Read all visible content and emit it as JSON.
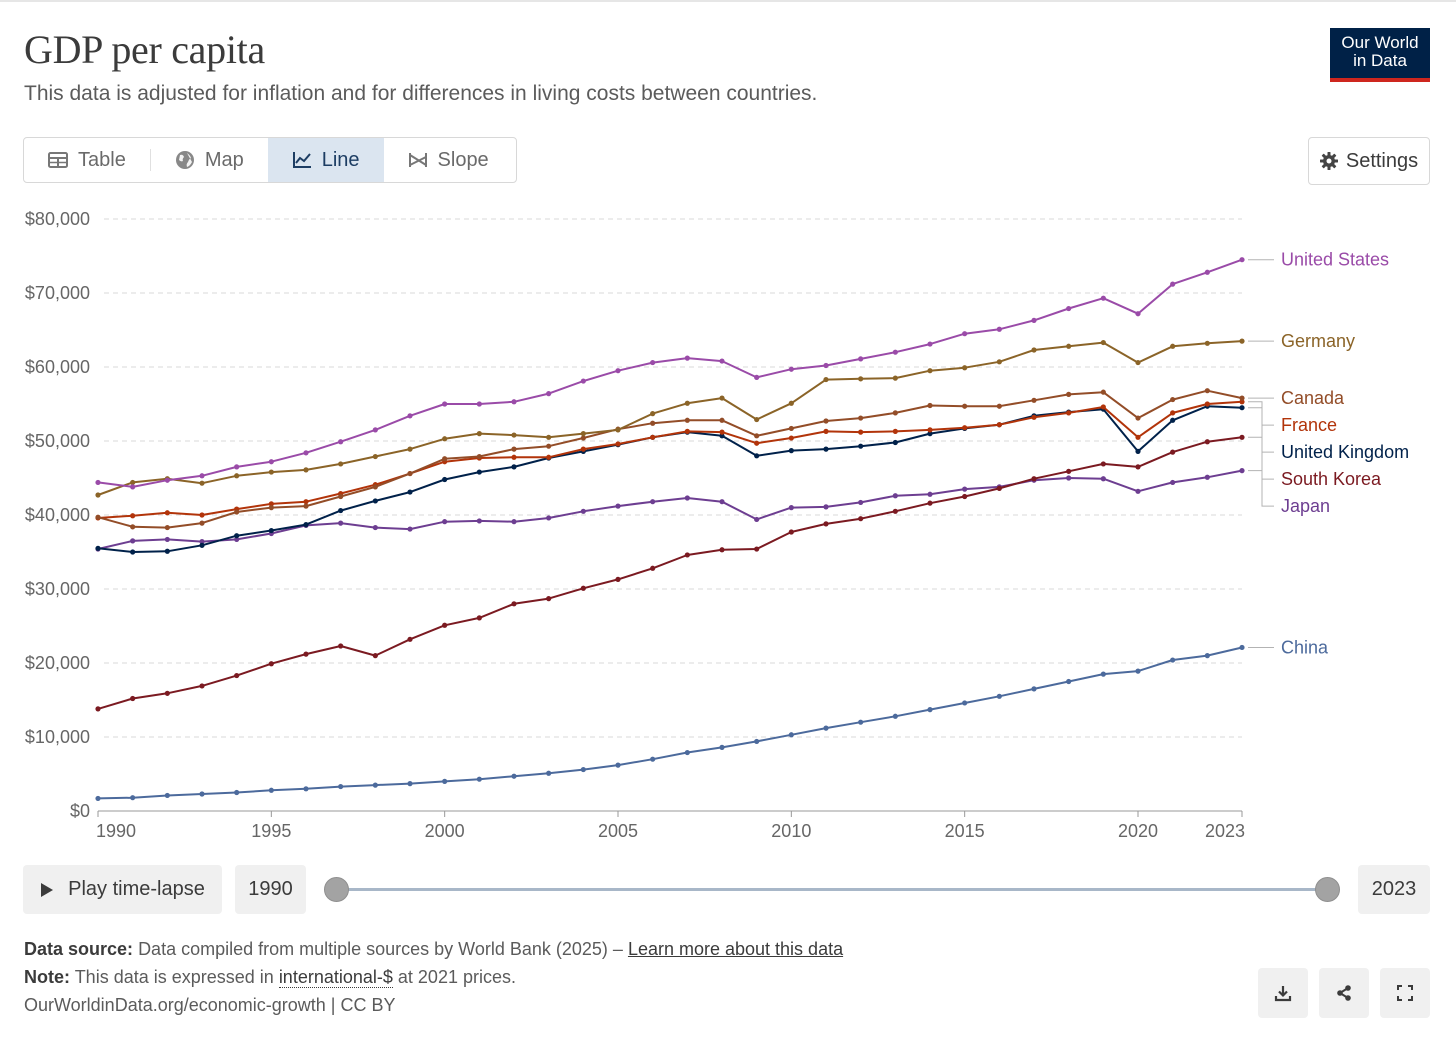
{
  "header": {
    "title": "GDP per capita",
    "subtitle": "This data is adjusted for inflation and for differences in living costs between countries.",
    "logo_line1": "Our World",
    "logo_line2": "in Data"
  },
  "tabs": [
    {
      "label": "Table",
      "icon": "table-icon"
    },
    {
      "label": "Map",
      "icon": "globe-icon"
    },
    {
      "label": "Line",
      "icon": "line-chart-icon",
      "active": true
    },
    {
      "label": "Slope",
      "icon": "slope-chart-icon"
    }
  ],
  "settings_label": "Settings",
  "timeline": {
    "play_label": "Play time-lapse",
    "start_year": "1990",
    "end_year": "2023"
  },
  "footer": {
    "source_label": "Data source:",
    "source_text": "Data compiled from multiple sources by World Bank (2025) –",
    "source_link": "Learn more about this data",
    "note_label": "Note:",
    "note_pre": "This data is expressed in",
    "note_term": "international-$",
    "note_post": "at 2021 prices.",
    "url_license": "OurWorldinData.org/economic-growth | CC BY"
  },
  "chart_data": {
    "type": "line",
    "title": "GDP per capita",
    "ylim": [
      0,
      80000
    ],
    "yticks": [
      0,
      10000,
      20000,
      30000,
      40000,
      50000,
      60000,
      70000,
      80000
    ],
    "ytick_labels": [
      "$0",
      "$10,000",
      "$20,000",
      "$30,000",
      "$40,000",
      "$50,000",
      "$60,000",
      "$70,000",
      "$80,000"
    ],
    "xlim": [
      1990,
      2023
    ],
    "xticks": [
      1990,
      1995,
      2000,
      2005,
      2010,
      2015,
      2020,
      2023
    ],
    "grid": true,
    "legend": "right end labels",
    "x": [
      1990,
      1991,
      1992,
      1993,
      1994,
      1995,
      1996,
      1997,
      1998,
      1999,
      2000,
      2001,
      2002,
      2003,
      2004,
      2005,
      2006,
      2007,
      2008,
      2009,
      2010,
      2011,
      2012,
      2013,
      2014,
      2015,
      2016,
      2017,
      2018,
      2019,
      2020,
      2021,
      2022,
      2023
    ],
    "series": [
      {
        "name": "United States",
        "color": "#9a4ba8",
        "values": [
          44400,
          43800,
          44700,
          45300,
          46500,
          47200,
          48400,
          49900,
          51500,
          53400,
          55000,
          55000,
          55300,
          56400,
          58100,
          59500,
          60600,
          61200,
          60800,
          58600,
          59700,
          60200,
          61100,
          62000,
          63100,
          64500,
          65100,
          66300,
          67900,
          69300,
          67200,
          71200,
          72800,
          74500
        ]
      },
      {
        "name": "Germany",
        "color": "#8b6428",
        "values": [
          42700,
          44400,
          44900,
          44300,
          45300,
          45800,
          46100,
          46900,
          47900,
          48900,
          50300,
          51000,
          50800,
          50500,
          51000,
          51500,
          53700,
          55100,
          55800,
          52900,
          55100,
          58300,
          58400,
          58500,
          59500,
          59900,
          60700,
          62300,
          62800,
          63300,
          60600,
          62800,
          63200,
          63500
        ]
      },
      {
        "name": "Canada",
        "color": "#934d28",
        "values": [
          39700,
          38400,
          38300,
          38900,
          40400,
          41000,
          41200,
          42500,
          43800,
          45600,
          47600,
          47900,
          48900,
          49300,
          50400,
          51600,
          52400,
          52800,
          52800,
          50700,
          51700,
          52700,
          53100,
          53800,
          54800,
          54700,
          54700,
          55500,
          56300,
          56600,
          53100,
          55600,
          56800,
          55800
        ]
      },
      {
        "name": "France",
        "color": "#b2340a",
        "values": [
          39600,
          39900,
          40300,
          40000,
          40800,
          41500,
          41800,
          42900,
          44100,
          45600,
          47200,
          47700,
          47800,
          47800,
          48900,
          49600,
          50500,
          51300,
          51200,
          49700,
          50400,
          51300,
          51200,
          51300,
          51500,
          51800,
          52200,
          53200,
          53800,
          54600,
          50500,
          53800,
          55000,
          55300
        ]
      },
      {
        "name": "United Kingdom",
        "color": "#00214a",
        "values": [
          35500,
          35000,
          35100,
          35900,
          37200,
          37900,
          38700,
          40600,
          41900,
          43100,
          44800,
          45800,
          46500,
          47700,
          48600,
          49500,
          50500,
          51200,
          50700,
          48000,
          48700,
          48900,
          49300,
          49800,
          51000,
          51700,
          52200,
          53400,
          53900,
          54300,
          48600,
          52800,
          54700,
          54500
        ]
      },
      {
        "name": "South Korea",
        "color": "#7b1a21",
        "values": [
          13800,
          15200,
          15900,
          16900,
          18300,
          19900,
          21200,
          22300,
          21000,
          23200,
          25100,
          26100,
          28000,
          28700,
          30100,
          31300,
          32800,
          34600,
          35300,
          35400,
          37700,
          38800,
          39500,
          40500,
          41600,
          42500,
          43600,
          44900,
          45900,
          46900,
          46500,
          48500,
          49900,
          50500
        ]
      },
      {
        "name": "Japan",
        "color": "#6d3e91",
        "values": [
          35400,
          36500,
          36700,
          36400,
          36700,
          37500,
          38600,
          38900,
          38300,
          38100,
          39100,
          39200,
          39100,
          39600,
          40500,
          41200,
          41800,
          42300,
          41800,
          39400,
          41000,
          41100,
          41700,
          42600,
          42800,
          43500,
          43800,
          44700,
          45000,
          44900,
          43200,
          44400,
          45100,
          46000
        ]
      },
      {
        "name": "China",
        "color": "#4c6a9c",
        "values": [
          1700,
          1800,
          2100,
          2300,
          2500,
          2800,
          3000,
          3300,
          3500,
          3700,
          4000,
          4300,
          4700,
          5100,
          5600,
          6200,
          7000,
          7900,
          8600,
          9400,
          10300,
          11200,
          12000,
          12800,
          13700,
          14600,
          15500,
          16500,
          17500,
          18500,
          18900,
          20400,
          21000,
          22100
        ]
      }
    ]
  }
}
